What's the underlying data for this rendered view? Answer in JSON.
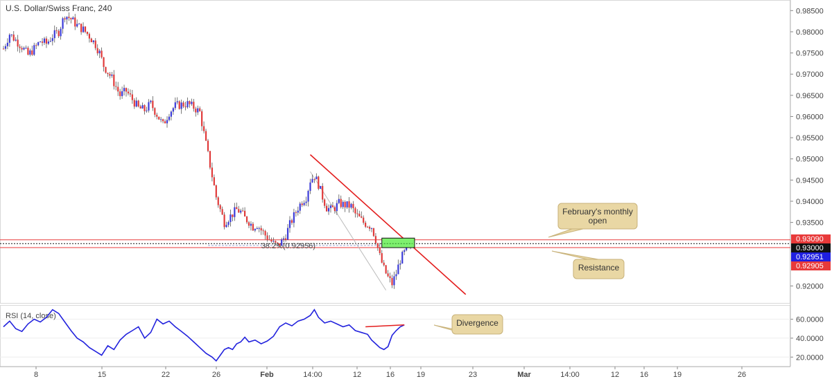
{
  "chart_title": "U.S. Dollar/Swiss Franc, 240",
  "rsi_label": "RSI (14, close)",
  "fib_label": "38.2%(0.92956)",
  "colors": {
    "up_candle": "#3b3bd8",
    "down_candle": "#e03a3a",
    "trendline": "#e31c1c",
    "level_lines": "#e83a3a",
    "monthly_open_line": "#111111",
    "green_box": "#7ef06e",
    "callout_fill": "#e9d7a4",
    "rsi_line": "#2222dd",
    "divergence_line": "#e31c1c"
  },
  "price_axis": {
    "ticks": [
      "0.98500",
      "0.98000",
      "0.97500",
      "0.97000",
      "0.96500",
      "0.96000",
      "0.95500",
      "0.95000",
      "0.94500",
      "0.94000",
      "0.93500",
      "0.92000"
    ]
  },
  "price_tags": [
    {
      "text": "0.93090",
      "value": 0.9309,
      "color": "#e83a3a"
    },
    {
      "text": "0.93000",
      "value": 0.93,
      "color": "#111111"
    },
    {
      "text": "0.92951",
      "value": 0.92951,
      "color": "#1f1fe0"
    },
    {
      "text": "0.92905",
      "value": 0.92905,
      "color": "#e83a3a"
    }
  ],
  "rsi_axis": {
    "ticks": [
      "60.0000",
      "40.0000",
      "20.0000"
    ]
  },
  "time_axis": {
    "labels": [
      "8",
      "15",
      "22",
      "26",
      "Feb",
      "14:00",
      "12",
      "16",
      "19",
      "23",
      "Mar",
      "14:00",
      "12",
      "16",
      "19",
      "26"
    ]
  },
  "callouts": {
    "monthly_open": "February's monthly open",
    "monthly_open_line1": "February's monthly",
    "monthly_open_line2": "open",
    "resistance": "Resistance",
    "divergence": "Divergence"
  },
  "chart_data": {
    "type": "candlestick",
    "ylim": [
      0.916,
      0.9875
    ],
    "rsi_ylim": [
      10,
      75
    ],
    "levels": {
      "upper": 0.9309,
      "monthly_open": 0.93,
      "lower": 0.92905
    },
    "fib_level": 0.92956,
    "close_path": [
      [
        0,
        0.976
      ],
      [
        3,
        0.9795
      ],
      [
        6,
        0.978
      ],
      [
        9,
        0.9765
      ],
      [
        12,
        0.9745
      ],
      [
        15,
        0.976
      ],
      [
        18,
        0.9778
      ],
      [
        21,
        0.9772
      ],
      [
        24,
        0.979
      ],
      [
        27,
        0.98
      ],
      [
        30,
        0.984
      ],
      [
        33,
        0.983
      ],
      [
        36,
        0.9815
      ],
      [
        39,
        0.9805
      ],
      [
        42,
        0.979
      ],
      [
        45,
        0.977
      ],
      [
        47,
        0.975
      ],
      [
        49,
        0.972
      ],
      [
        51,
        0.9705
      ],
      [
        53,
        0.969
      ],
      [
        55,
        0.967
      ],
      [
        57,
        0.965
      ],
      [
        60,
        0.966
      ],
      [
        63,
        0.964
      ],
      [
        66,
        0.962
      ],
      [
        69,
        0.9615
      ],
      [
        72,
        0.963
      ],
      [
        75,
        0.9605
      ],
      [
        78,
        0.958
      ],
      [
        81,
        0.961
      ],
      [
        84,
        0.9625
      ],
      [
        87,
        0.9628
      ],
      [
        90,
        0.963
      ],
      [
        93,
        0.9622
      ],
      [
        96,
        0.961
      ],
      [
        98,
        0.956
      ],
      [
        100,
        0.951
      ],
      [
        102,
        0.946
      ],
      [
        104,
        0.941
      ],
      [
        106,
        0.938
      ],
      [
        108,
        0.935
      ],
      [
        110,
        0.936
      ],
      [
        112,
        0.937
      ],
      [
        114,
        0.938
      ],
      [
        116,
        0.9375
      ],
      [
        118,
        0.936
      ],
      [
        120,
        0.9352
      ],
      [
        122,
        0.934
      ],
      [
        124,
        0.9345
      ],
      [
        126,
        0.9332
      ],
      [
        128,
        0.932
      ],
      [
        130,
        0.931
      ],
      [
        132,
        0.93
      ],
      [
        134,
        0.9295
      ],
      [
        136,
        0.9305
      ],
      [
        138,
        0.932
      ],
      [
        140,
        0.9345
      ],
      [
        142,
        0.9365
      ],
      [
        144,
        0.9385
      ],
      [
        146,
        0.94
      ],
      [
        148,
        0.941
      ],
      [
        150,
        0.945
      ],
      [
        152,
        0.946
      ],
      [
        154,
        0.944
      ],
      [
        156,
        0.941
      ],
      [
        158,
        0.9385
      ],
      [
        160,
        0.938
      ],
      [
        162,
        0.9385
      ],
      [
        164,
        0.9395
      ],
      [
        166,
        0.9392
      ],
      [
        168,
        0.939
      ],
      [
        170,
        0.9388
      ],
      [
        172,
        0.937
      ],
      [
        174,
        0.936
      ],
      [
        176,
        0.935
      ],
      [
        178,
        0.9345
      ],
      [
        180,
        0.934
      ],
      [
        182,
        0.931
      ],
      [
        184,
        0.927
      ],
      [
        186,
        0.924
      ],
      [
        188,
        0.922
      ],
      [
        190,
        0.9205
      ],
      [
        192,
        0.923
      ],
      [
        194,
        0.9262
      ],
      [
        196,
        0.9278
      ],
      [
        198,
        0.929
      ],
      [
        200,
        0.93
      ]
    ],
    "trendline": [
      [
        150,
        0.951
      ],
      [
        226,
        0.918
      ]
    ],
    "fib_line": [
      [
        150,
        0.947
      ],
      [
        187,
        0.919
      ]
    ],
    "green_box": {
      "x_from": 185,
      "x_to": 201,
      "y_from": 0.92905,
      "y_to": 0.9313
    },
    "rsi_path": [
      [
        0,
        52
      ],
      [
        3,
        58
      ],
      [
        6,
        50
      ],
      [
        9,
        47
      ],
      [
        12,
        55
      ],
      [
        15,
        60
      ],
      [
        18,
        57
      ],
      [
        21,
        62
      ],
      [
        24,
        70
      ],
      [
        27,
        66
      ],
      [
        30,
        57
      ],
      [
        33,
        48
      ],
      [
        36,
        40
      ],
      [
        39,
        36
      ],
      [
        42,
        30
      ],
      [
        45,
        26
      ],
      [
        48,
        22
      ],
      [
        51,
        32
      ],
      [
        54,
        28
      ],
      [
        57,
        38
      ],
      [
        60,
        44
      ],
      [
        63,
        48
      ],
      [
        66,
        52
      ],
      [
        69,
        40
      ],
      [
        72,
        46
      ],
      [
        75,
        60
      ],
      [
        78,
        55
      ],
      [
        81,
        58
      ],
      [
        84,
        52
      ],
      [
        87,
        47
      ],
      [
        90,
        42
      ],
      [
        93,
        36
      ],
      [
        96,
        30
      ],
      [
        99,
        24
      ],
      [
        102,
        20
      ],
      [
        104,
        16
      ],
      [
        106,
        22
      ],
      [
        108,
        28
      ],
      [
        110,
        30
      ],
      [
        112,
        28
      ],
      [
        114,
        34
      ],
      [
        116,
        36
      ],
      [
        118,
        41
      ],
      [
        120,
        36
      ],
      [
        123,
        38
      ],
      [
        126,
        34
      ],
      [
        129,
        37
      ],
      [
        132,
        42
      ],
      [
        135,
        52
      ],
      [
        138,
        56
      ],
      [
        141,
        53
      ],
      [
        144,
        58
      ],
      [
        147,
        60
      ],
      [
        150,
        64
      ],
      [
        152,
        70
      ],
      [
        154,
        62
      ],
      [
        157,
        56
      ],
      [
        160,
        58
      ],
      [
        163,
        55
      ],
      [
        166,
        52
      ],
      [
        169,
        54
      ],
      [
        172,
        48
      ],
      [
        175,
        46
      ],
      [
        178,
        44
      ],
      [
        180,
        38
      ],
      [
        182,
        34
      ],
      [
        184,
        30
      ],
      [
        186,
        28
      ],
      [
        188,
        31
      ],
      [
        190,
        43
      ],
      [
        192,
        48
      ],
      [
        194,
        52
      ],
      [
        196,
        54
      ]
    ],
    "divergence_line": [
      [
        177,
        52
      ],
      [
        196,
        54
      ]
    ]
  }
}
